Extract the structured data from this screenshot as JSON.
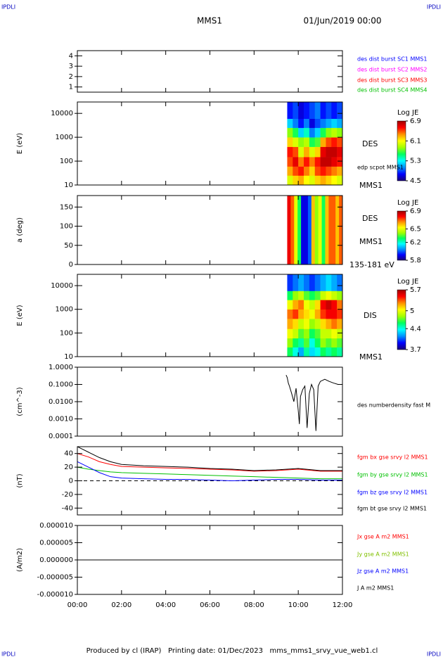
{
  "header": {
    "corner_labels": [
      "IPDLI",
      "IPDLI",
      "IPDLI",
      "IPDLI"
    ],
    "title": "MMS1",
    "date": "01/Jun/2019 00:00"
  },
  "footer": "Produced by cl (IRAP)   Printing date: 01/Dec/2023   mms_mms1_srvy_vue_web1.cl",
  "chart_data": [
    {
      "type": "line",
      "xlim": [
        0,
        12
      ],
      "ylim": [
        0.5,
        4.5
      ],
      "yticks": [
        1,
        2,
        3,
        4
      ],
      "series": [
        {
          "name": "des dist burst SC1 MMS1",
          "color": "#0000ff"
        },
        {
          "name": "des dist burst SC2 MMS2",
          "color": "#ff00ff"
        },
        {
          "name": "des dist burst SC3 MMS3",
          "color": "#ff0000"
        },
        {
          "name": "des dist burst SC4 MMS4",
          "color": "#00c000"
        }
      ]
    },
    {
      "type": "heatmap",
      "ylabel": "E (eV)",
      "log": true,
      "xlim": [
        0,
        12
      ],
      "ylim": [
        10,
        30000
      ],
      "yticks": [
        10,
        100,
        1000,
        10000
      ],
      "xbins": [
        9.5,
        9.75,
        10.0,
        10.25,
        10.5,
        10.75,
        11.0,
        11.25,
        11.5,
        11.75,
        12.0
      ],
      "ybins": [
        10,
        25,
        60,
        150,
        400,
        1000,
        2500,
        6000,
        30000
      ],
      "values": [
        [
          6.0,
          6.3,
          6.5,
          6.6,
          6.2,
          5.8,
          5.2,
          4.8
        ],
        [
          6.2,
          6.5,
          6.7,
          6.5,
          6.0,
          5.6,
          5.0,
          4.9
        ],
        [
          6.3,
          6.6,
          6.4,
          6.0,
          5.8,
          5.2,
          4.8,
          4.7
        ],
        [
          6.1,
          6.4,
          6.6,
          6.3,
          5.9,
          5.4,
          5.0,
          4.8
        ],
        [
          6.0,
          6.2,
          6.4,
          6.0,
          5.6,
          5.0,
          4.7,
          4.9
        ],
        [
          6.2,
          6.5,
          6.6,
          6.2,
          5.7,
          5.2,
          4.9,
          5.0
        ],
        [
          6.3,
          6.6,
          6.8,
          6.7,
          6.3,
          5.6,
          5.0,
          4.8
        ],
        [
          6.2,
          6.5,
          6.8,
          6.8,
          6.5,
          5.8,
          5.1,
          4.9
        ],
        [
          6.1,
          6.4,
          6.7,
          6.8,
          6.6,
          5.9,
          5.2,
          4.8
        ],
        [
          6.0,
          6.3,
          6.6,
          6.7,
          6.5,
          5.8,
          5.1,
          4.9
        ]
      ],
      "colorbar": {
        "title": "Log JE",
        "zlim": [
          4.5,
          6.9
        ],
        "zticks": [
          6.9,
          6.1,
          5.3,
          4.5
        ]
      },
      "annotations": [
        "DES",
        "edp scpot MMS1",
        "MMS1"
      ]
    },
    {
      "type": "heatmap",
      "ylabel": "a (deg)",
      "xlim": [
        0,
        12
      ],
      "ylim": [
        0,
        180
      ],
      "yticks": [
        0,
        50,
        100,
        150
      ],
      "xbins": [
        9.5,
        9.65625,
        9.8125,
        9.96875,
        10.125,
        10.28125,
        10.4375,
        10.59375,
        10.75,
        10.90625,
        11.0625,
        11.21875,
        11.375,
        11.53125,
        11.6875,
        11.84375,
        12.0
      ],
      "ybins": [
        0,
        180
      ],
      "values": [
        [
          6.8
        ],
        [
          6.7
        ],
        [
          6.5
        ],
        [
          6.3
        ],
        [
          5.9
        ],
        [
          5.9
        ],
        [
          6.0
        ],
        [
          6.6
        ],
        [
          6.4
        ],
        [
          6.5
        ],
        [
          6.3
        ],
        [
          6.6
        ],
        [
          6.7
        ],
        [
          6.7
        ],
        [
          6.6
        ],
        [
          6.7
        ]
      ],
      "colorbar": {
        "title": "Log JE",
        "zlim": [
          5.8,
          6.9
        ],
        "zticks": [
          6.9,
          6.5,
          6.2,
          5.8
        ]
      },
      "annotations": [
        "DES",
        "MMS1",
        "135-181 eV"
      ]
    },
    {
      "type": "heatmap",
      "ylabel": "E (eV)",
      "log": true,
      "xlim": [
        0,
        12
      ],
      "ylim": [
        10,
        30000
      ],
      "yticks": [
        10,
        100,
        1000,
        10000
      ],
      "xbins": [
        9.5,
        9.75,
        10.0,
        10.25,
        10.5,
        10.75,
        11.0,
        11.25,
        11.5,
        11.75,
        12.0
      ],
      "ybins": [
        10,
        25,
        60,
        150,
        400,
        1000,
        2500,
        6000,
        30000
      ],
      "values": [
        [
          4.6,
          4.8,
          5.0,
          5.2,
          5.3,
          5.0,
          4.6,
          4.0
        ],
        [
          4.4,
          4.6,
          4.9,
          5.1,
          5.4,
          5.2,
          4.8,
          4.1
        ],
        [
          4.2,
          4.5,
          4.7,
          4.9,
          5.2,
          5.3,
          4.9,
          4.2
        ],
        [
          4.5,
          4.7,
          4.8,
          5.0,
          5.1,
          5.0,
          4.7,
          4.1
        ],
        [
          4.3,
          4.4,
          4.6,
          4.8,
          5.0,
          4.9,
          4.6,
          4.0
        ],
        [
          4.4,
          4.6,
          4.7,
          4.9,
          5.2,
          5.1,
          4.7,
          4.1
        ],
        [
          4.6,
          4.8,
          4.9,
          5.1,
          5.4,
          5.5,
          4.9,
          4.2
        ],
        [
          4.5,
          4.7,
          4.9,
          5.2,
          5.5,
          5.6,
          5.0,
          4.3
        ],
        [
          4.6,
          4.8,
          5.0,
          5.3,
          5.5,
          5.5,
          4.9,
          4.2
        ],
        [
          4.5,
          4.7,
          4.9,
          5.2,
          5.4,
          5.3,
          4.8,
          4.1
        ]
      ],
      "colorbar": {
        "title": "Log JE",
        "zlim": [
          3.7,
          5.7
        ],
        "zticks": [
          5.7,
          5.0,
          4.4,
          3.7
        ]
      },
      "annotations": [
        "DIS",
        "MMS1"
      ]
    },
    {
      "type": "line",
      "ylabel": "(cm^-3)",
      "log": true,
      "xlim": [
        0,
        12
      ],
      "ylim": [
        0.0001,
        1
      ],
      "yticks": [
        {
          "value": 1,
          "label": "1.0000"
        },
        {
          "value": 0.1,
          "label": "0.1000"
        },
        {
          "value": 0.01,
          "label": "0.0100"
        },
        {
          "value": 0.001,
          "label": "0.0010"
        },
        {
          "value": 0.0001,
          "label": "0.0001"
        }
      ],
      "x": [
        9.45,
        9.5,
        9.55,
        9.6,
        9.7,
        9.8,
        9.9,
        10.0,
        10.05,
        10.1,
        10.2,
        10.3,
        10.35,
        10.4,
        10.5,
        10.6,
        10.7,
        10.8,
        10.9,
        11.0,
        11.2,
        11.4,
        11.6,
        11.8,
        12.0
      ],
      "series": [
        {
          "name": "des numberdensity fast M",
          "color": "#000000",
          "values": [
            0.35,
            0.25,
            0.12,
            0.08,
            0.03,
            0.01,
            0.06,
            0.003,
            0.0005,
            0.02,
            0.05,
            0.08,
            0.005,
            0.0003,
            0.03,
            0.1,
            0.05,
            0.0002,
            0.08,
            0.15,
            0.2,
            0.15,
            0.12,
            0.1,
            0.1
          ]
        }
      ]
    },
    {
      "type": "line",
      "ylabel": "(nT)",
      "xlim": [
        0,
        12
      ],
      "ylim": [
        -50,
        50
      ],
      "yticks": [
        -40,
        -20,
        0,
        20,
        40
      ],
      "hline": 0,
      "x": [
        0,
        0.5,
        1,
        1.5,
        2,
        3,
        4,
        5,
        6,
        7,
        8,
        9,
        10,
        11,
        12
      ],
      "series": [
        {
          "name": "fgm bx gse srvy l2 MMS1",
          "color": "#ff0000",
          "values": [
            40,
            35,
            28,
            24,
            21,
            20,
            19,
            18,
            17,
            16,
            14,
            15,
            17,
            14,
            14
          ]
        },
        {
          "name": "fgm by gse srvy l2 MMS1",
          "color": "#00c000",
          "values": [
            20,
            17,
            15,
            13,
            12,
            11,
            10,
            9,
            8,
            7,
            6,
            5,
            4,
            3,
            3
          ]
        },
        {
          "name": "fgm bz gse srvy l2 MMS1",
          "color": "#0000ff",
          "values": [
            28,
            20,
            12,
            6,
            4,
            3,
            2,
            2,
            1,
            0,
            1,
            2,
            2,
            1,
            1
          ]
        },
        {
          "name": "fgm bt gse srvy l2 MMS1",
          "color": "#000000",
          "values": [
            50,
            42,
            34,
            28,
            24,
            22,
            21,
            20,
            18,
            17,
            15,
            16,
            18,
            15,
            15
          ]
        }
      ]
    },
    {
      "type": "line",
      "ylabel": "(A/m2)",
      "xlim": [
        0,
        12
      ],
      "ylim": [
        -1e-05,
        1e-05
      ],
      "yticks": [
        {
          "value": 1e-05,
          "label": "0.000010"
        },
        {
          "value": 5e-06,
          "label": "0.000005"
        },
        {
          "value": 0,
          "label": "0.000000"
        },
        {
          "value": -5e-06,
          "label": "-0.000005"
        },
        {
          "value": -1e-05,
          "label": "-0.000010"
        }
      ],
      "x": [
        0,
        12
      ],
      "xticks": [
        {
          "value": 0,
          "label": "00:00"
        },
        {
          "value": 2,
          "label": "02:00"
        },
        {
          "value": 4,
          "label": "04:00"
        },
        {
          "value": 6,
          "label": "06:00"
        },
        {
          "value": 8,
          "label": "08:00"
        },
        {
          "value": 10,
          "label": "10:00"
        },
        {
          "value": 12,
          "label": "12:00"
        }
      ],
      "series": [
        {
          "name": "Jx gse A m2 MMS1",
          "color": "#ff0000",
          "values": [
            0,
            0
          ]
        },
        {
          "name": "Jy gse A m2 MMS1",
          "color": "#80c000",
          "values": [
            0,
            0
          ]
        },
        {
          "name": "Jz gse A m2 MMS1",
          "color": "#0000ff",
          "values": [
            0,
            0
          ]
        },
        {
          "name": "J A m2 MMS1",
          "color": "#000000",
          "values": [
            0,
            0
          ]
        }
      ]
    }
  ],
  "colormap": [
    "#1a0078",
    "#0000ff",
    "#0090ff",
    "#00ffff",
    "#00ff60",
    "#a0ff00",
    "#ffff00",
    "#ff9000",
    "#ff0000",
    "#a00000"
  ]
}
